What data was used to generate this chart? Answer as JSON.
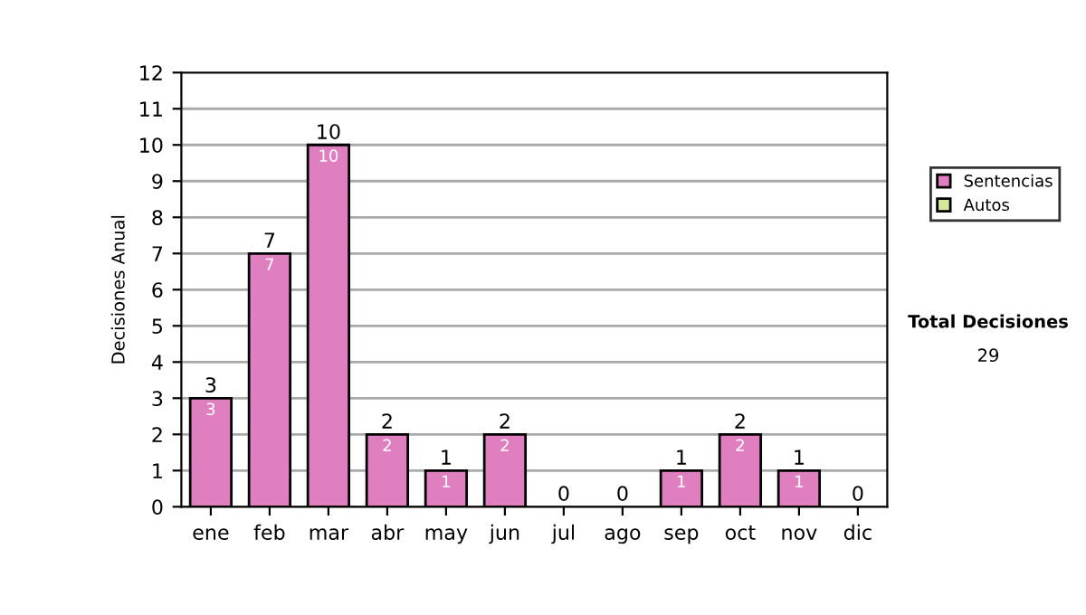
{
  "chart_data": {
    "type": "bar",
    "stacked": true,
    "ylabel": "Decisiones Anual",
    "categories": [
      "ene",
      "feb",
      "mar",
      "abr",
      "may",
      "jun",
      "jul",
      "ago",
      "sep",
      "oct",
      "nov",
      "dic"
    ],
    "series": [
      {
        "name": "Sentencias",
        "color": "#e07fc0",
        "values": [
          3,
          7,
          10,
          2,
          1,
          2,
          0,
          0,
          1,
          2,
          1,
          0
        ],
        "value_labels": [
          "3",
          "7",
          "10",
          "2",
          "1",
          "2",
          null,
          null,
          "1",
          "2",
          "1",
          null
        ]
      },
      {
        "name": "Autos",
        "color": "#d4e89a",
        "values": [
          0,
          0,
          0,
          0,
          0,
          0,
          0,
          0,
          0,
          0,
          0,
          0
        ]
      }
    ],
    "totals": [
      "3",
      "7",
      "10",
      "2",
      "1",
      "2",
      "0",
      "0",
      "1",
      "2",
      "1",
      "0"
    ],
    "ylim": [
      0,
      12
    ],
    "yticks": [
      0,
      1,
      2,
      3,
      4,
      5,
      6,
      7,
      8,
      9,
      10,
      11,
      12
    ],
    "grid": "y",
    "legend": "right",
    "annotations": [
      "Total Decisiones",
      "29"
    ]
  }
}
